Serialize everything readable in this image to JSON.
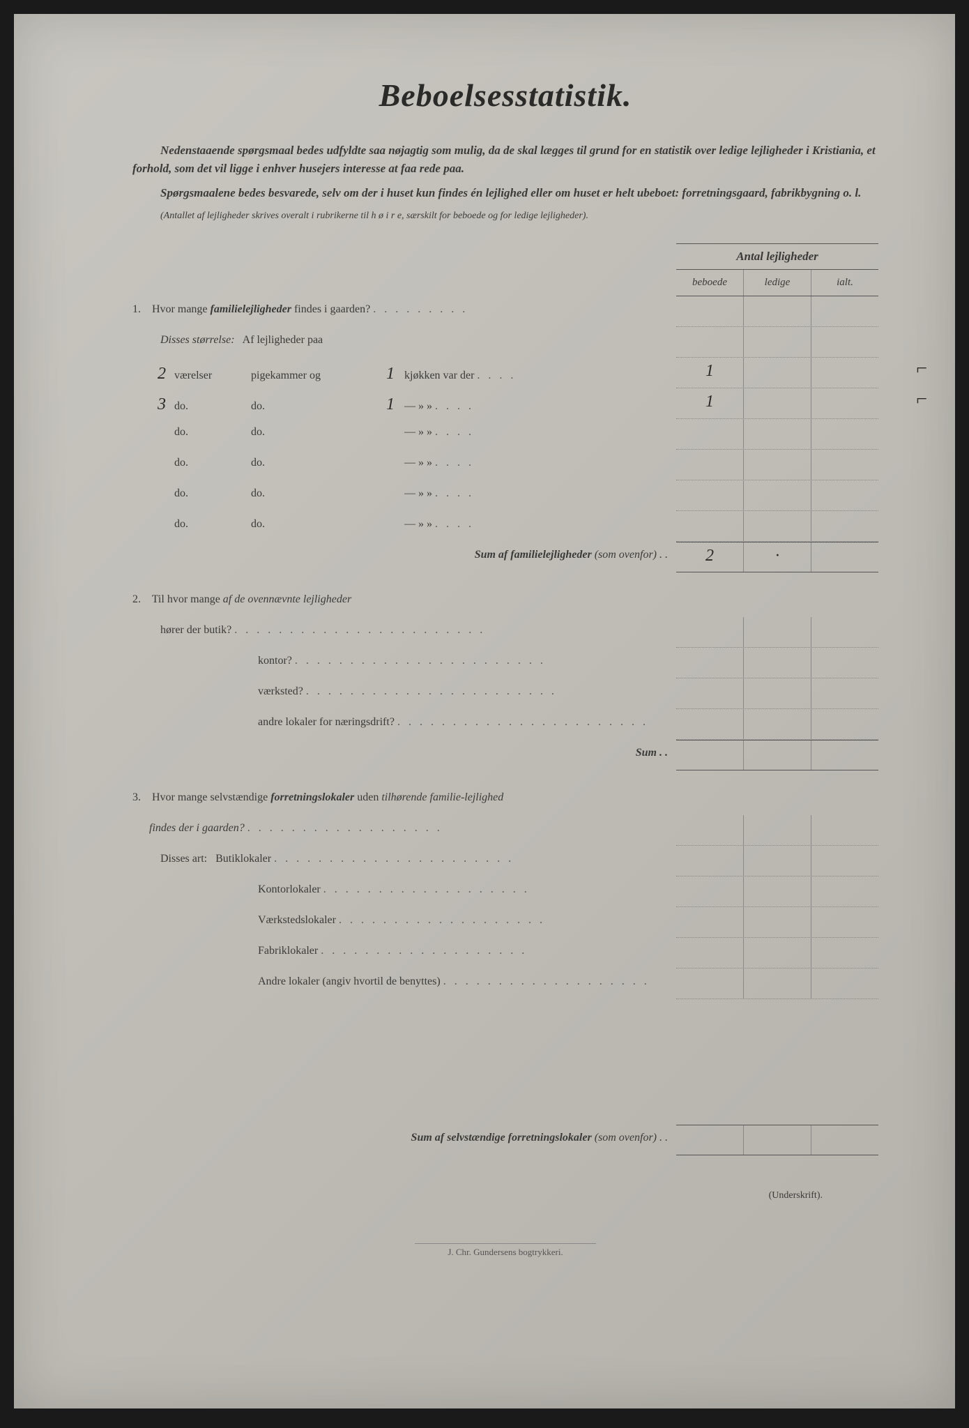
{
  "title": "Beboelsesstatistik.",
  "intro1": "Nedenstaaende spørgsmaal bedes udfyldte saa nøjagtig som mulig, da de skal lægges til grund for en statistik over ledige lejligheder i Kristiania, et forhold, som det vil ligge i enhver husejers interesse at faa rede paa.",
  "intro2": "Spørgsmaalene bedes besvarede, selv om der i huset kun findes én lejlighed eller om huset er helt ubeboet: forretningsgaard, fabrikbygning o. l.",
  "intro3": "(Antallet af lejligheder skrives overalt i rubrikerne til h ø i r e, særskilt for beboede og for ledige lejligheder).",
  "header": {
    "main": "Antal lejligheder",
    "col1": "beboede",
    "col2": "ledige",
    "col3": "ialt."
  },
  "q1": {
    "text": "Hvor mange ",
    "bold": "familielejligheder",
    "text2": " findes i gaarden?",
    "sub": "Disses størrelse:",
    "sub2": "Af lejligheder paa",
    "rows": [
      {
        "n": "2",
        "c2": "værelser",
        "c3": "pigekammer og",
        "pk": "1",
        "c4": "kjøkken var der",
        "beboede": "1",
        "margin": "⌐"
      },
      {
        "n": "3",
        "c2": "do.",
        "c3": "do.",
        "pk": "1",
        "c4": "—     »    »",
        "beboede": "1",
        "margin": "⌐"
      },
      {
        "n": "",
        "c2": "do.",
        "c3": "do.",
        "pk": "",
        "c4": "—     »    »",
        "beboede": "",
        "margin": ""
      },
      {
        "n": "",
        "c2": "do.",
        "c3": "do.",
        "pk": "",
        "c4": "—     »    »",
        "beboede": "",
        "margin": ""
      },
      {
        "n": "",
        "c2": "do.",
        "c3": "do.",
        "pk": "",
        "c4": "—     »    »",
        "beboede": "",
        "margin": ""
      },
      {
        "n": "",
        "c2": "do.",
        "c3": "do.",
        "pk": "",
        "c4": "—     »    »",
        "beboede": "",
        "margin": ""
      }
    ],
    "sum_label": "Sum af familielejligheder",
    "sum_light": " (som ovenfor) . .",
    "sum_val": "2",
    "sum_val2": "·"
  },
  "q2": {
    "text": "Til hvor mange ",
    "italic": "af de ovennævnte lejligheder",
    "lines": [
      "hører der butik?",
      "kontor?",
      "værksted?",
      "andre lokaler for næringsdrift?"
    ],
    "sum": "Sum . ."
  },
  "q3": {
    "text": "Hvor mange selvstændige ",
    "bold": "forretningslokaler",
    "text2": " uden ",
    "italic": "tilhørende familie-lejlighed",
    "text3": " findes der i gaarden?",
    "sub": "Disses art:",
    "lines": [
      "Butiklokaler",
      "Kontorlokaler",
      "Værkstedslokaler",
      "Fabriklokaler",
      "Andre lokaler (angiv hvortil de benyttes)"
    ],
    "sum_label": "Sum af selvstændige forretningslokaler",
    "sum_light": " (som ovenfor) . ."
  },
  "underskrift": "(Underskrift).",
  "printer": "J. Chr. Gundersens bogtrykkeri."
}
